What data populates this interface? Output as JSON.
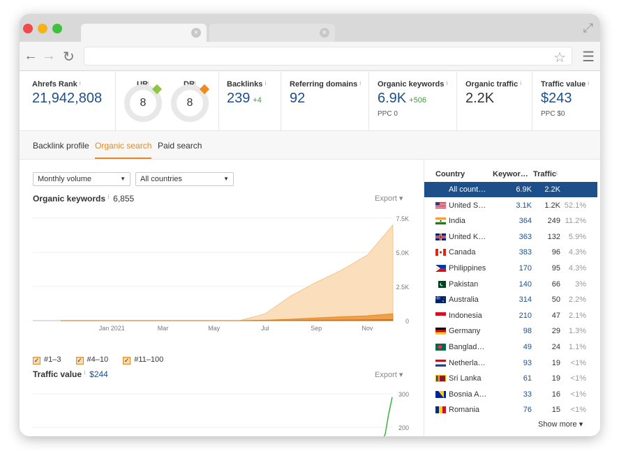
{
  "colors": {
    "accent_orange": "#e8871e",
    "link_blue": "#1d4f8b",
    "selected_row": "#1d4f8b",
    "area_fill": "#f9d9b0",
    "green_line": "#3bb33b",
    "ur_marker": "#8dc63f",
    "dr_marker": "#f08a1c"
  },
  "browser": {
    "icons": [
      "back-icon",
      "forward-icon",
      "reload-icon",
      "star-icon",
      "menu-icon",
      "expand-icon",
      "tab-close-icon"
    ],
    "tab_close": "×",
    "back": "←",
    "forward": "→",
    "reload": "↻",
    "star": "☆",
    "menu": "☰",
    "expand": "⤢"
  },
  "metrics": {
    "ahrefs_rank": {
      "label": "Ahrefs Rank",
      "value": "21,942,808"
    },
    "ur": {
      "label": "UR",
      "value": "8"
    },
    "dr": {
      "label": "DR",
      "value": "8"
    },
    "backlinks": {
      "label": "Backlinks",
      "value": "239",
      "delta": "+4"
    },
    "referring_domains": {
      "label": "Referring domains",
      "value": "92"
    },
    "organic_keywords": {
      "label": "Organic keywords",
      "value": "6.9K",
      "delta": "+506",
      "sub": "PPC 0"
    },
    "organic_traffic": {
      "label": "Organic traffic",
      "value": "2.2K"
    },
    "traffic_value": {
      "label": "Traffic value",
      "value": "$243",
      "sub": "PPC $0"
    },
    "info_marker": "i"
  },
  "subtabs": [
    "Backlink profile",
    "Organic search",
    "Paid search"
  ],
  "filters": {
    "volume": "Monthly volume",
    "countries": "All countries",
    "caret": "▼"
  },
  "organic_section": {
    "title": "Organic keywords",
    "count": "6,855",
    "export": "Export ▾"
  },
  "traffic_section": {
    "title": "Traffic value",
    "count": "$244",
    "export": "Export ▾"
  },
  "legend": {
    "items": [
      "#1–3",
      "#4–10",
      "#11–100"
    ],
    "check": "✓"
  },
  "chart_data": [
    {
      "type": "area",
      "title": "Organic keywords",
      "x_ticks": [
        "Jan 2021",
        "Mar",
        "May",
        "Jul",
        "Sep",
        "Nov"
      ],
      "y_ticks": [
        "7.5K",
        "5.0K",
        "2.5K",
        "0"
      ],
      "ylim": [
        0,
        7500
      ],
      "grid": true,
      "x": [
        "2020-11",
        "2020-12",
        "2021-01",
        "2021-02",
        "2021-03",
        "2021-04",
        "2021-05",
        "2021-06",
        "2021-07",
        "2021-08",
        "2021-09",
        "2021-10",
        "2021-11",
        "2021-12"
      ],
      "series": [
        {
          "name": "#11–100",
          "values": [
            0,
            0,
            0,
            0,
            0,
            0,
            0,
            0,
            500,
            1800,
            2800,
            3700,
            4800,
            7000
          ]
        },
        {
          "name": "#4–10",
          "values": [
            0,
            0,
            0,
            0,
            0,
            0,
            0,
            0,
            30,
            100,
            200,
            280,
            350,
            500
          ]
        },
        {
          "name": "#1–3",
          "values": [
            0,
            0,
            0,
            0,
            0,
            0,
            0,
            0,
            5,
            15,
            30,
            40,
            50,
            70
          ]
        }
      ]
    },
    {
      "type": "line",
      "title": "Traffic value",
      "y_ticks": [
        "300",
        "200"
      ],
      "ylim": [
        150,
        320
      ],
      "grid": true,
      "x": [
        "2021-11-20",
        "2021-11-25",
        "2021-11-30",
        "2021-12-05"
      ],
      "series": [
        {
          "values": [
            140,
            180,
            240,
            290
          ]
        }
      ]
    }
  ],
  "countries_table": {
    "headers": {
      "country": "Country",
      "keywords": "Keywor…",
      "traffic": "Traffic"
    },
    "rows": [
      {
        "country": "All count…",
        "keywords": "6.9K",
        "traffic": "2.2K",
        "pct": "",
        "flag": "none",
        "selected": true
      },
      {
        "country": "United S…",
        "keywords": "3.1K",
        "traffic": "1.2K",
        "pct": "52.1%",
        "flag": "us-flag-icon"
      },
      {
        "country": "India",
        "keywords": "364",
        "traffic": "249",
        "pct": "11.2%",
        "flag": "in-flag-icon"
      },
      {
        "country": "United K…",
        "keywords": "363",
        "traffic": "132",
        "pct": "5.9%",
        "flag": "uk-flag-icon"
      },
      {
        "country": "Canada",
        "keywords": "383",
        "traffic": "96",
        "pct": "4.3%",
        "flag": "ca-flag-icon"
      },
      {
        "country": "Philippines",
        "keywords": "170",
        "traffic": "95",
        "pct": "4.3%",
        "flag": "ph-flag-icon"
      },
      {
        "country": "Pakistan",
        "keywords": "140",
        "traffic": "66",
        "pct": "3%",
        "flag": "pk-flag-icon"
      },
      {
        "country": "Australia",
        "keywords": "314",
        "traffic": "50",
        "pct": "2.2%",
        "flag": "au-flag-icon"
      },
      {
        "country": "Indonesia",
        "keywords": "210",
        "traffic": "47",
        "pct": "2.1%",
        "flag": "id-flag-icon"
      },
      {
        "country": "Germany",
        "keywords": "98",
        "traffic": "29",
        "pct": "1.3%",
        "flag": "de-flag-icon"
      },
      {
        "country": "Banglad…",
        "keywords": "49",
        "traffic": "24",
        "pct": "1.1%",
        "flag": "bd-flag-icon"
      },
      {
        "country": "Netherla…",
        "keywords": "93",
        "traffic": "19",
        "pct": "<1%",
        "flag": "nl-flag-icon"
      },
      {
        "country": "Sri Lanka",
        "keywords": "61",
        "traffic": "19",
        "pct": "<1%",
        "flag": "lk-flag-icon"
      },
      {
        "country": "Bosnia A…",
        "keywords": "33",
        "traffic": "16",
        "pct": "<1%",
        "flag": "ba-flag-icon"
      },
      {
        "country": "Romania",
        "keywords": "76",
        "traffic": "15",
        "pct": "<1%",
        "flag": "ro-flag-icon"
      }
    ],
    "show_more": "Show more ▾"
  }
}
